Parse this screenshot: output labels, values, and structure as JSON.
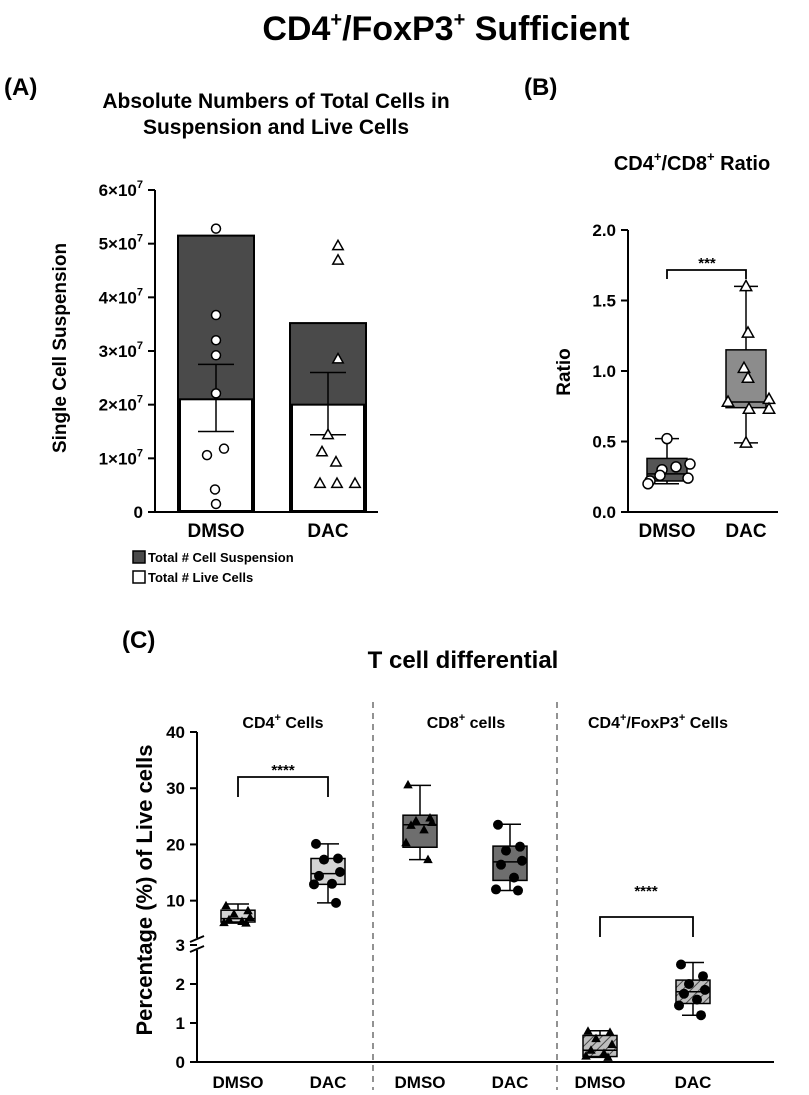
{
  "figure": {
    "title_main": "CD4",
    "title_sup1": "+",
    "title_mid": "/FoxP3",
    "title_sup2": "+",
    "title_end": " Sufficient"
  },
  "panelA": {
    "label": "(A)",
    "title_line1": "Absolute Numbers of Total Cells in",
    "title_line2": "Suspension and Live  Cells",
    "ylabel": "Single  Cell Suspension",
    "legend_suspension": "Total # Cell Suspension",
    "legend_live": "Total # Live Cells",
    "yticks_main": [
      "0",
      "1×10",
      "2×10",
      "3×10",
      "4×10",
      "5×10",
      "6×10"
    ],
    "ytick_exponent": "7",
    "colors": {
      "suspension": "#4a4a4a",
      "live": "#ffffff",
      "outline": "#000000"
    }
  },
  "panelB": {
    "label": "(B)",
    "title_pre": "CD4",
    "title_sup1": "+",
    "title_mid": "/CD8",
    "title_sup2": "+",
    "title_end": " Ratio",
    "ylabel": "Ratio",
    "yticks": [
      "0.0",
      "0.5",
      "1.0",
      "1.5",
      "2.0"
    ],
    "sig": "***",
    "colors": {
      "dmso": "#555555",
      "dac": "#8c8c8c"
    }
  },
  "panelC": {
    "label": "(C)",
    "title": "T cell differential",
    "ylabel": "Percentage (%) of Live cells",
    "group1_pre": "CD4",
    "group1_sup": "+",
    "group1_post": " Cells",
    "group2_pre": "CD8",
    "group2_sup": "+",
    "group2_post": " cells",
    "group3_pre": "CD4",
    "group3_sup1": "+",
    "group3_mid": "/FoxP3",
    "group3_sup2": "+",
    "group3_post": " Cells",
    "sig1": "****",
    "sig3": "****",
    "yticks_upper": [
      "10",
      "20",
      "30",
      "40"
    ],
    "yticks_lower": [
      "0",
      "1",
      "2",
      "3"
    ],
    "colors": {
      "cd4": "#d3d3d3",
      "cd8": "#6e6e6e",
      "foxp3": "#9a9a9a"
    }
  },
  "chart_data": [
    {
      "type": "bar",
      "panel": "A",
      "title": "Absolute Numbers of Total Cells in Suspension and Live  Cells",
      "ylabel": "Single  Cell Suspension",
      "categories": [
        "DMSO",
        "DAC"
      ],
      "ylim": [
        0,
        60000000
      ],
      "series": [
        {
          "name": "Total # Cell Suspension",
          "values": [
            51500000,
            35200000
          ]
        },
        {
          "name": "Total # Live Cells",
          "values": [
            21000000,
            20000000
          ],
          "error_low": [
            15000000,
            14400000
          ],
          "error_high": [
            27500000,
            26000000
          ]
        }
      ],
      "points": {
        "DMSO_circles": [
          52800000,
          36700000,
          32000000,
          29200000,
          22100000,
          11800000,
          10600000,
          4200000,
          1500000
        ],
        "DAC_triangles": [
          49600000,
          46900000,
          28500000,
          14400000,
          11200000,
          9300000,
          5300000,
          5300000,
          5300000
        ]
      }
    },
    {
      "type": "box",
      "panel": "B",
      "title": "CD4+/CD8+ Ratio",
      "ylabel": "Ratio",
      "categories": [
        "DMSO",
        "DAC"
      ],
      "ylim": [
        0,
        2.0
      ],
      "boxes": [
        {
          "name": "DMSO",
          "min": 0.2,
          "q1": 0.22,
          "median": 0.27,
          "q3": 0.38,
          "max": 0.52,
          "points": [
            0.52,
            0.34,
            0.32,
            0.3,
            0.26,
            0.24,
            0.22,
            0.2
          ]
        },
        {
          "name": "DAC",
          "min": 0.49,
          "q1": 0.74,
          "median": 0.78,
          "q3": 1.15,
          "max": 1.6,
          "points": [
            1.6,
            1.27,
            1.02,
            0.95,
            0.8,
            0.78,
            0.73,
            0.73,
            0.49
          ]
        }
      ],
      "significance": "***"
    },
    {
      "type": "box",
      "panel": "C",
      "title": "T cell differential",
      "ylabel": "Percentage (%) of Live cells",
      "y_axis_break": {
        "lower": [
          0,
          3
        ],
        "upper": [
          3,
          40
        ]
      },
      "groups": [
        {
          "name": "CD4+ Cells",
          "significance": "****",
          "boxes": [
            {
              "name": "DMSO",
              "min": 6.0,
              "q1": 6.2,
              "median": 6.8,
              "q3": 8.3,
              "max": 9.4,
              "points": [
                9.1,
                8.2,
                7.6,
                7.0,
                6.6,
                6.3,
                6.1,
                6.0
              ]
            },
            {
              "name": "DAC",
              "min": 9.6,
              "q1": 12.9,
              "median": 14.8,
              "q3": 17.5,
              "max": 20.1,
              "points": [
                20.1,
                17.5,
                17.3,
                15.1,
                14.4,
                13.0,
                12.9,
                9.6
              ]
            }
          ]
        },
        {
          "name": "CD8+ cells",
          "boxes": [
            {
              "name": "DMSO",
              "min": 17.3,
              "q1": 19.5,
              "median": 23.5,
              "q3": 25.2,
              "max": 30.5,
              "points": [
                30.6,
                24.7,
                24.2,
                23.9,
                23.4,
                22.6,
                20.3,
                17.3
              ]
            },
            {
              "name": "DAC",
              "min": 11.8,
              "q1": 13.6,
              "median": 16.9,
              "q3": 19.7,
              "max": 23.6,
              "points": [
                23.5,
                19.6,
                18.9,
                17.1,
                16.4,
                14.1,
                12.0,
                11.8
              ]
            }
          ]
        },
        {
          "name": "CD4+/FoxP3+ Cells",
          "significance": "****",
          "boxes": [
            {
              "name": "DMSO",
              "min": 0.12,
              "q1": 0.14,
              "median": 0.3,
              "q3": 0.68,
              "max": 0.8,
              "points": [
                0.79,
                0.76,
                0.6,
                0.45,
                0.3,
                0.22,
                0.15,
                0.12
              ]
            },
            {
              "name": "DAC",
              "min": 1.2,
              "q1": 1.5,
              "median": 1.8,
              "q3": 2.1,
              "max": 2.55,
              "points": [
                2.5,
                2.2,
                2.0,
                1.85,
                1.75,
                1.6,
                1.45,
                1.2
              ]
            }
          ]
        }
      ],
      "categories": [
        "DMSO",
        "DAC",
        "DMSO",
        "DAC",
        "DMSO",
        "DAC"
      ]
    }
  ]
}
